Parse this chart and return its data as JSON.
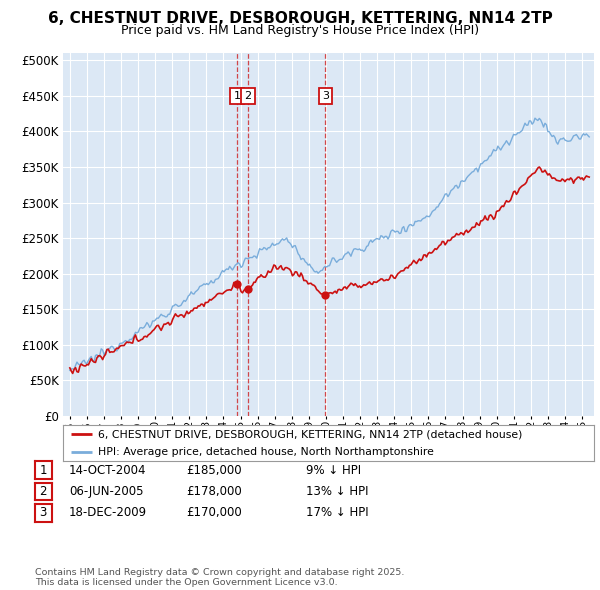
{
  "title": "6, CHESTNUT DRIVE, DESBOROUGH, KETTERING, NN14 2TP",
  "subtitle": "Price paid vs. HM Land Registry's House Price Index (HPI)",
  "bg_color": "#dce8f5",
  "grid_color": "#ffffff",
  "red_line_label": "6, CHESTNUT DRIVE, DESBOROUGH, KETTERING, NN14 2TP (detached house)",
  "blue_line_label": "HPI: Average price, detached house, North Northamptonshire",
  "red_color": "#cc1111",
  "blue_color": "#7aaddb",
  "transactions": [
    {
      "id": 1,
      "date": "14-OCT-2004",
      "price": "£185,000",
      "hpi_note": "9% ↓ HPI",
      "x_year": 2004.79
    },
    {
      "id": 2,
      "date": "06-JUN-2005",
      "price": "£178,000",
      "hpi_note": "13% ↓ HPI",
      "x_year": 2005.44
    },
    {
      "id": 3,
      "date": "18-DEC-2009",
      "price": "£170,000",
      "hpi_note": "17% ↓ HPI",
      "x_year": 2009.96
    }
  ],
  "transaction_prices": [
    185000,
    178000,
    170000
  ],
  "footer": "Contains HM Land Registry data © Crown copyright and database right 2025.\nThis data is licensed under the Open Government Licence v3.0.",
  "ylim": [
    0,
    510000
  ],
  "yticks": [
    0,
    50000,
    100000,
    150000,
    200000,
    250000,
    300000,
    350000,
    400000,
    450000,
    500000
  ],
  "xlim_start": 1994.6,
  "xlim_end": 2025.7
}
